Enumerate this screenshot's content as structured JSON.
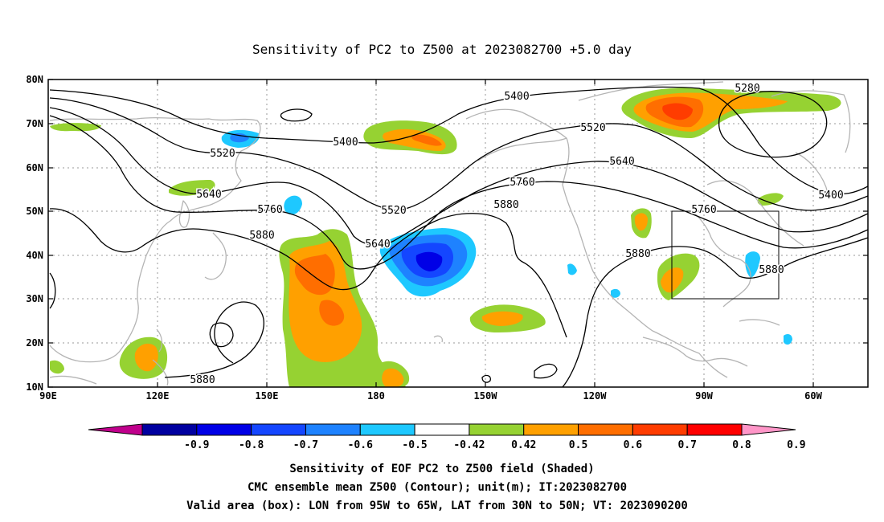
{
  "title": "Sensitivity of PC2 to Z500 at 2023082700 +5.0 day",
  "lat_labels": [
    "80N",
    "70N",
    "60N",
    "50N",
    "40N",
    "30N",
    "20N",
    "10N"
  ],
  "lon_labels": [
    "90E",
    "120E",
    "150E",
    "180",
    "150W",
    "120W",
    "90W",
    "60W"
  ],
  "contour_labels": [
    {
      "id": "c5280",
      "text": "5280"
    },
    {
      "id": "c5400a",
      "text": "5400"
    },
    {
      "id": "c5400b",
      "text": "5400"
    },
    {
      "id": "c5400c",
      "text": "5400"
    },
    {
      "id": "c5520a",
      "text": "5520"
    },
    {
      "id": "c5520b",
      "text": "5520"
    },
    {
      "id": "c5520c",
      "text": "5520"
    },
    {
      "id": "c5640a",
      "text": "5640"
    },
    {
      "id": "c5640b",
      "text": "5640"
    },
    {
      "id": "c5640c",
      "text": "5640"
    },
    {
      "id": "c5760a",
      "text": "5760"
    },
    {
      "id": "c5760b",
      "text": "5760"
    },
    {
      "id": "c5760c",
      "text": "5760"
    },
    {
      "id": "c5880a",
      "text": "5880"
    },
    {
      "id": "c5880b",
      "text": "5880"
    },
    {
      "id": "c5880c",
      "text": "5880"
    },
    {
      "id": "c5880d",
      "text": "5880"
    },
    {
      "id": "c5880e",
      "text": "5880"
    }
  ],
  "colorbar": {
    "colors": [
      "#c0008c",
      "#0000a0",
      "#0000e6",
      "#1446ff",
      "#1e82ff",
      "#1ec8ff",
      "#ffffff",
      "#96d232",
      "#ffa000",
      "#ff6e00",
      "#ff3c00",
      "#ff0000",
      "#ff96c8"
    ],
    "tick_labels": [
      "-0.9",
      "-0.8",
      "-0.7",
      "-0.6",
      "-0.5",
      "-0.42",
      "0.42",
      "0.5",
      "0.6",
      "0.7",
      "0.8",
      "0.9"
    ]
  },
  "footer": {
    "line1": "Sensitivity of EOF PC2 to Z500 field (Shaded)",
    "line2": "CMC ensemble mean Z500 (Contour); unit(m); IT:2023082700",
    "line3": "Valid area (box): LON from 95W to 65W, LAT from 30N to 50N; VT: 2023090200"
  }
}
